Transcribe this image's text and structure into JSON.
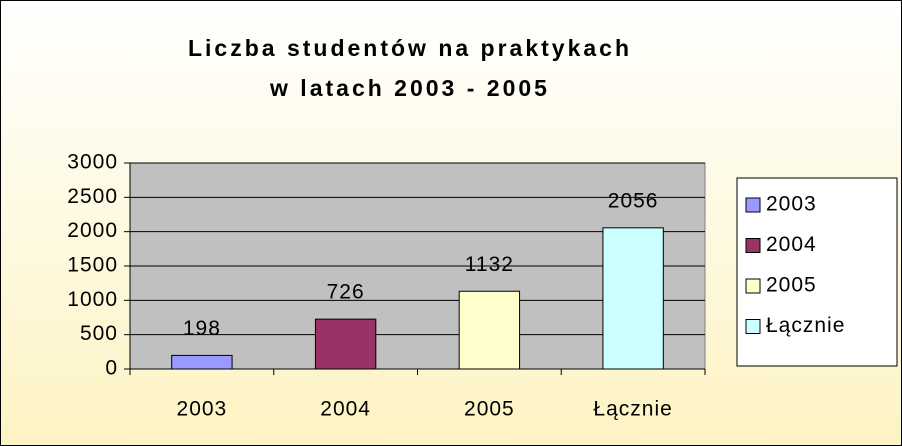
{
  "chart_data": {
    "type": "bar",
    "title": "Liczba studentów na praktykach",
    "subtitle": "w latach 2003 - 2005",
    "categories": [
      "2003",
      "2004",
      "2005",
      "Łącznie"
    ],
    "values": [
      198,
      726,
      1132,
      2056
    ],
    "colors": [
      "#9999ff",
      "#993366",
      "#ffffcc",
      "#ccffff"
    ],
    "ylim": [
      0,
      3000
    ],
    "yticks": [
      0,
      500,
      1000,
      1500,
      2000,
      2500,
      3000
    ],
    "grid": true,
    "legend": "right"
  }
}
